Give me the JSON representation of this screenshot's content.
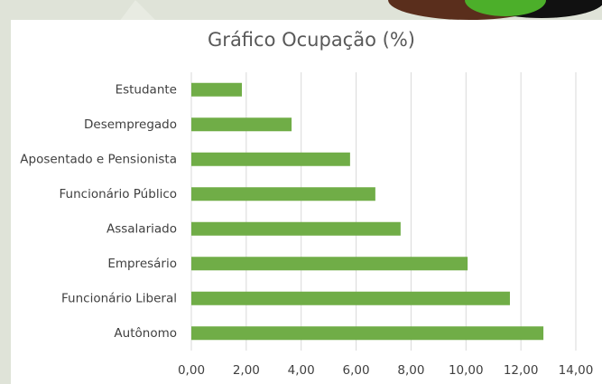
{
  "chart_data": {
    "type": "bar",
    "horizontal": true,
    "title": "Gráfico Ocupação (%)",
    "categories": [
      "Estudante",
      "Desempregado",
      "Aposentado e Pensionista",
      "Funcionário Público",
      "Assalariado",
      "Empresário",
      "Funcionário Liberal",
      "Autônomo"
    ],
    "values": [
      1.84,
      3.65,
      5.78,
      6.7,
      7.62,
      10.06,
      11.6,
      12.82
    ],
    "color": "#70ad47",
    "xlim": [
      0,
      14
    ],
    "xticks": [
      {
        "value": 0,
        "label": "0,00"
      },
      {
        "value": 2,
        "label": "2,00"
      },
      {
        "value": 4,
        "label": "4,00"
      },
      {
        "value": 6,
        "label": "6,00"
      },
      {
        "value": 8,
        "label": "8,00"
      },
      {
        "value": 10,
        "label": "10,00"
      },
      {
        "value": 12,
        "label": "12,00"
      },
      {
        "value": 14,
        "label": "14,00"
      }
    ],
    "grid": true
  }
}
